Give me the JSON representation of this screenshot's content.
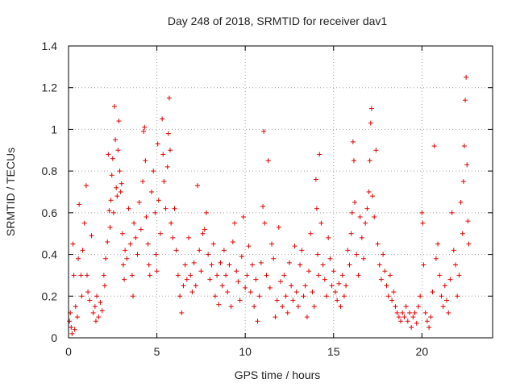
{
  "chart_data": {
    "type": "scatter",
    "title": "Day 248 of 2018, SRMTID for receiver dav1",
    "xlabel": "GPS time / hours",
    "ylabel": "SRMTID / TECUs",
    "xlim": [
      0,
      24
    ],
    "ylim": [
      0,
      1.4
    ],
    "xticks": [
      0,
      5,
      10,
      15,
      20
    ],
    "xtick_labels": [
      "0",
      "5",
      "10",
      "15",
      "20"
    ],
    "yticks": [
      0,
      0.2,
      0.4,
      0.6,
      0.8,
      1,
      1.2,
      1.4
    ],
    "ytick_labels": [
      "0",
      "0.2",
      "0.4",
      "0.6",
      "0.8",
      "1",
      "1.2",
      "1.4"
    ],
    "grid": true,
    "marker": "+",
    "color": "#e00000",
    "series": [
      {
        "name": "dav1",
        "points": [
          [
            0.05,
            0.08
          ],
          [
            0.1,
            0.12
          ],
          [
            0.15,
            0.05
          ],
          [
            0.2,
            0.02
          ],
          [
            0.25,
            0.45
          ],
          [
            0.3,
            0.3
          ],
          [
            0.35,
            0.04
          ],
          [
            0.4,
            0.15
          ],
          [
            0.5,
            0.1
          ],
          [
            0.55,
            0.38
          ],
          [
            0.6,
            0.64
          ],
          [
            0.7,
            0.3
          ],
          [
            0.75,
            0.2
          ],
          [
            0.8,
            0.42
          ],
          [
            0.9,
            0.55
          ],
          [
            1.0,
            0.73
          ],
          [
            1.05,
            0.3
          ],
          [
            1.1,
            0.22
          ],
          [
            1.2,
            0.18
          ],
          [
            1.3,
            0.49
          ],
          [
            1.4,
            0.12
          ],
          [
            1.5,
            0.15
          ],
          [
            1.55,
            0.08
          ],
          [
            1.6,
            0.2
          ],
          [
            1.7,
            0.1
          ],
          [
            1.8,
            0.17
          ],
          [
            1.9,
            0.13
          ],
          [
            2.0,
            0.3
          ],
          [
            2.05,
            0.25
          ],
          [
            2.1,
            0.38
          ],
          [
            2.2,
            0.46
          ],
          [
            2.25,
            0.88
          ],
          [
            2.3,
            0.61
          ],
          [
            2.35,
            0.53
          ],
          [
            2.4,
            0.66
          ],
          [
            2.45,
            0.78
          ],
          [
            2.5,
            0.86
          ],
          [
            2.55,
            0.6
          ],
          [
            2.6,
            1.11
          ],
          [
            2.65,
            0.95
          ],
          [
            2.7,
            0.72
          ],
          [
            2.75,
            0.68
          ],
          [
            2.8,
            0.9
          ],
          [
            2.85,
            1.04
          ],
          [
            2.9,
            0.8
          ],
          [
            2.95,
            0.7
          ],
          [
            3.0,
            0.74
          ],
          [
            3.05,
            0.5
          ],
          [
            3.1,
            0.35
          ],
          [
            3.15,
            0.28
          ],
          [
            3.2,
            0.42
          ],
          [
            3.3,
            0.38
          ],
          [
            3.4,
            0.62
          ],
          [
            3.5,
            0.45
          ],
          [
            3.6,
            0.3
          ],
          [
            3.65,
            0.2
          ],
          [
            3.7,
            0.55
          ],
          [
            3.8,
            0.48
          ],
          [
            3.9,
            0.4
          ],
          [
            4.0,
            0.65
          ],
          [
            4.1,
            0.52
          ],
          [
            4.2,
            0.75
          ],
          [
            4.25,
            0.99
          ],
          [
            4.3,
            1.01
          ],
          [
            4.35,
            0.85
          ],
          [
            4.4,
            0.58
          ],
          [
            4.5,
            0.45
          ],
          [
            4.55,
            0.35
          ],
          [
            4.6,
            0.3
          ],
          [
            4.7,
            0.7
          ],
          [
            4.8,
            0.8
          ],
          [
            4.9,
            0.6
          ],
          [
            4.95,
            0.4
          ],
          [
            5.0,
            0.32
          ],
          [
            5.05,
            0.93
          ],
          [
            5.1,
            0.66
          ],
          [
            5.2,
            0.5
          ],
          [
            5.3,
            1.05
          ],
          [
            5.35,
            0.88
          ],
          [
            5.4,
            0.75
          ],
          [
            5.5,
            0.62
          ],
          [
            5.6,
            0.82
          ],
          [
            5.65,
            0.98
          ],
          [
            5.7,
            1.15
          ],
          [
            5.75,
            0.9
          ],
          [
            5.8,
            0.55
          ],
          [
            5.9,
            0.48
          ],
          [
            6.0,
            0.62
          ],
          [
            6.1,
            0.42
          ],
          [
            6.2,
            0.3
          ],
          [
            6.3,
            0.2
          ],
          [
            6.4,
            0.12
          ],
          [
            6.5,
            0.25
          ],
          [
            6.6,
            0.35
          ],
          [
            6.7,
            0.28
          ],
          [
            6.8,
            0.48
          ],
          [
            6.9,
            0.3
          ],
          [
            7.0,
            0.22
          ],
          [
            7.1,
            0.36
          ],
          [
            7.2,
            0.25
          ],
          [
            7.3,
            0.73
          ],
          [
            7.4,
            0.42
          ],
          [
            7.5,
            0.32
          ],
          [
            7.6,
            0.5
          ],
          [
            7.7,
            0.52
          ],
          [
            7.8,
            0.6
          ],
          [
            7.9,
            0.4
          ],
          [
            8.0,
            0.28
          ],
          [
            8.1,
            0.35
          ],
          [
            8.2,
            0.45
          ],
          [
            8.3,
            0.2
          ],
          [
            8.4,
            0.3
          ],
          [
            8.5,
            0.16
          ],
          [
            8.6,
            0.36
          ],
          [
            8.7,
            0.25
          ],
          [
            8.8,
            0.42
          ],
          [
            8.9,
            0.3
          ],
          [
            9.0,
            0.22
          ],
          [
            9.1,
            0.35
          ],
          [
            9.2,
            0.15
          ],
          [
            9.3,
            0.46
          ],
          [
            9.4,
            0.55
          ],
          [
            9.5,
            0.32
          ],
          [
            9.6,
            0.27
          ],
          [
            9.7,
            0.18
          ],
          [
            9.8,
            0.39
          ],
          [
            9.9,
            0.58
          ],
          [
            10.0,
            0.24
          ],
          [
            10.1,
            0.3
          ],
          [
            10.2,
            0.44
          ],
          [
            10.3,
            0.22
          ],
          [
            10.4,
            0.35
          ],
          [
            10.5,
            0.15
          ],
          [
            10.6,
            0.28
          ],
          [
            10.7,
            0.08
          ],
          [
            10.8,
            0.2
          ],
          [
            10.9,
            0.36
          ],
          [
            11.0,
            0.63
          ],
          [
            11.05,
            0.99
          ],
          [
            11.1,
            0.55
          ],
          [
            11.2,
            0.3
          ],
          [
            11.3,
            0.85
          ],
          [
            11.4,
            0.24
          ],
          [
            11.5,
            0.45
          ],
          [
            11.6,
            0.38
          ],
          [
            11.7,
            0.1
          ],
          [
            11.8,
            0.18
          ],
          [
            11.9,
            0.53
          ],
          [
            12.0,
            0.27
          ],
          [
            12.1,
            0.15
          ],
          [
            12.2,
            0.3
          ],
          [
            12.3,
            0.2
          ],
          [
            12.4,
            0.12
          ],
          [
            12.5,
            0.36
          ],
          [
            12.6,
            0.25
          ],
          [
            12.7,
            0.18
          ],
          [
            12.8,
            0.44
          ],
          [
            12.9,
            0.22
          ],
          [
            13.0,
            0.15
          ],
          [
            13.1,
            0.35
          ],
          [
            13.2,
            0.42
          ],
          [
            13.3,
            0.2
          ],
          [
            13.4,
            0.25
          ],
          [
            13.5,
            0.1
          ],
          [
            13.6,
            0.32
          ],
          [
            13.7,
            0.5
          ],
          [
            13.8,
            0.22
          ],
          [
            13.9,
            0.15
          ],
          [
            14.0,
            0.76
          ],
          [
            14.05,
            0.62
          ],
          [
            14.1,
            0.4
          ],
          [
            14.15,
            0.3
          ],
          [
            14.2,
            0.88
          ],
          [
            14.3,
            0.55
          ],
          [
            14.4,
            0.35
          ],
          [
            14.5,
            0.28
          ],
          [
            14.6,
            0.2
          ],
          [
            14.7,
            0.48
          ],
          [
            14.8,
            0.38
          ],
          [
            14.9,
            0.25
          ],
          [
            15.0,
            0.32
          ],
          [
            15.1,
            0.22
          ],
          [
            15.2,
            0.18
          ],
          [
            15.3,
            0.26
          ],
          [
            15.4,
            0.15
          ],
          [
            15.5,
            0.3
          ],
          [
            15.6,
            0.2
          ],
          [
            15.7,
            0.25
          ],
          [
            15.8,
            0.42
          ],
          [
            15.9,
            0.35
          ],
          [
            16.0,
            0.5
          ],
          [
            16.05,
            0.6
          ],
          [
            16.1,
            0.94
          ],
          [
            16.15,
            0.85
          ],
          [
            16.2,
            0.65
          ],
          [
            16.3,
            0.4
          ],
          [
            16.4,
            0.3
          ],
          [
            16.5,
            0.58
          ],
          [
            16.6,
            0.48
          ],
          [
            16.7,
            0.38
          ],
          [
            16.8,
            0.55
          ],
          [
            16.9,
            0.62
          ],
          [
            17.0,
            0.7
          ],
          [
            17.05,
            0.85
          ],
          [
            17.1,
            1.03
          ],
          [
            17.15,
            1.1
          ],
          [
            17.2,
            0.68
          ],
          [
            17.3,
            0.58
          ],
          [
            17.4,
            0.9
          ],
          [
            17.5,
            0.45
          ],
          [
            17.6,
            0.35
          ],
          [
            17.7,
            0.28
          ],
          [
            17.8,
            0.4
          ],
          [
            17.9,
            0.32
          ],
          [
            18.0,
            0.25
          ],
          [
            18.1,
            0.2
          ],
          [
            18.2,
            0.3
          ],
          [
            18.3,
            0.18
          ],
          [
            18.4,
            0.22
          ],
          [
            18.5,
            0.15
          ],
          [
            18.6,
            0.12
          ],
          [
            18.7,
            0.1
          ],
          [
            18.8,
            0.08
          ],
          [
            18.9,
            0.12
          ],
          [
            19.0,
            0.1
          ],
          [
            19.1,
            0.15
          ],
          [
            19.2,
            0.08
          ],
          [
            19.3,
            0.12
          ],
          [
            19.4,
            0.05
          ],
          [
            19.5,
            0.1
          ],
          [
            19.6,
            0.12
          ],
          [
            19.7,
            0.07
          ],
          [
            19.8,
            0.15
          ],
          [
            19.9,
            0.2
          ],
          [
            20.0,
            0.6
          ],
          [
            20.05,
            0.55
          ],
          [
            20.1,
            0.35
          ],
          [
            20.2,
            0.12
          ],
          [
            20.3,
            0.08
          ],
          [
            20.4,
            0.05
          ],
          [
            20.5,
            0.1
          ],
          [
            20.6,
            0.22
          ],
          [
            20.7,
            0.92
          ],
          [
            20.8,
            0.38
          ],
          [
            20.9,
            0.45
          ],
          [
            21.0,
            0.3
          ],
          [
            21.1,
            0.2
          ],
          [
            21.2,
            0.15
          ],
          [
            21.3,
            0.25
          ],
          [
            21.4,
            0.18
          ],
          [
            21.5,
            0.12
          ],
          [
            21.6,
            0.28
          ],
          [
            21.7,
            0.6
          ],
          [
            21.8,
            0.42
          ],
          [
            21.9,
            0.35
          ],
          [
            22.0,
            0.2
          ],
          [
            22.1,
            0.3
          ],
          [
            22.2,
            0.65
          ],
          [
            22.3,
            0.5
          ],
          [
            22.35,
            0.75
          ],
          [
            22.4,
            0.92
          ],
          [
            22.45,
            1.14
          ],
          [
            22.5,
            1.25
          ],
          [
            22.55,
            0.83
          ],
          [
            22.6,
            0.56
          ],
          [
            22.65,
            0.45
          ]
        ]
      }
    ]
  }
}
